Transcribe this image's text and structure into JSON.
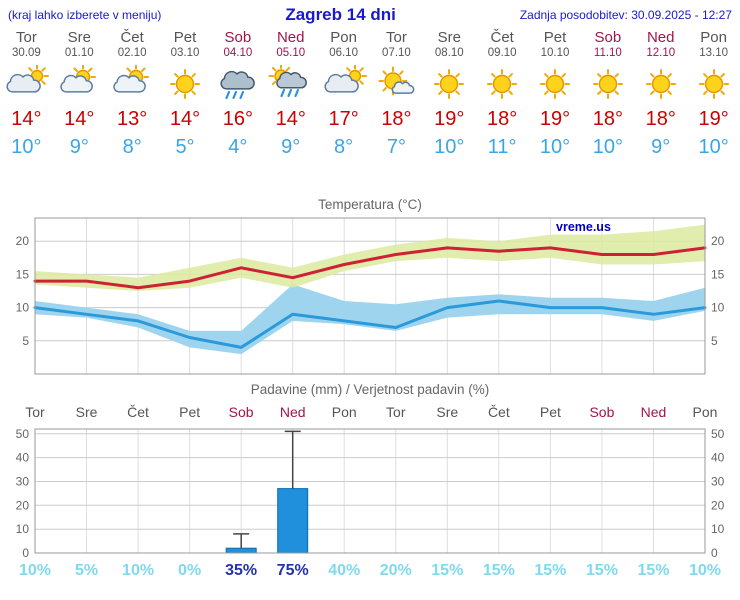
{
  "header": {
    "left_note": "(kraj lahko izberete v meniju)",
    "title": "Zagreb 14 dni",
    "update_note": "Zadnja posodobitev: 30.09.2025 - 12:27"
  },
  "colors": {
    "accent_blue": "#1a1acc",
    "tmax_red": "#cc0000",
    "tmin_blue": "#3aa5e6",
    "weekend_red": "#a0154a",
    "weekday_gray": "#555555",
    "bar_blue": "#2090dd",
    "bar_border": "#0e6bb0",
    "prob_light": "#7fd9ef",
    "prob_dark": "#2433a8",
    "grid": "#cccccc",
    "axis_border": "#999999",
    "band_max_green": "#dcea9e",
    "band_min_blue": "#9fd4ee",
    "line_max_red": "#cc2233",
    "line_min_blue": "#2b9ada"
  },
  "days": [
    {
      "name": "Tor",
      "date": "30.09",
      "icon": "cloudy",
      "tmax": "14°",
      "tmin": "10°",
      "weekend": false
    },
    {
      "name": "Sre",
      "date": "01.10",
      "icon": "partly-cloudy",
      "tmax": "14°",
      "tmin": "9°",
      "weekend": false
    },
    {
      "name": "Čet",
      "date": "02.10",
      "icon": "partly-cloudy",
      "tmax": "13°",
      "tmin": "8°",
      "weekend": false
    },
    {
      "name": "Pet",
      "date": "03.10",
      "icon": "sunny",
      "tmax": "14°",
      "tmin": "5°",
      "weekend": false
    },
    {
      "name": "Sob",
      "date": "04.10",
      "icon": "rain",
      "tmax": "16°",
      "tmin": "4°",
      "weekend": true
    },
    {
      "name": "Ned",
      "date": "05.10",
      "icon": "rain-sun",
      "tmax": "14°",
      "tmin": "9°",
      "weekend": true
    },
    {
      "name": "Pon",
      "date": "06.10",
      "icon": "cloudy",
      "tmax": "17°",
      "tmin": "8°",
      "weekend": false
    },
    {
      "name": "Tor",
      "date": "07.10",
      "icon": "mostly-sunny",
      "tmax": "18°",
      "tmin": "7°",
      "weekend": false
    },
    {
      "name": "Sre",
      "date": "08.10",
      "icon": "sunny",
      "tmax": "19°",
      "tmin": "10°",
      "weekend": false
    },
    {
      "name": "Čet",
      "date": "09.10",
      "icon": "sunny",
      "tmax": "18°",
      "tmin": "11°",
      "weekend": false
    },
    {
      "name": "Pet",
      "date": "10.10",
      "icon": "sunny",
      "tmax": "19°",
      "tmin": "10°",
      "weekend": false
    },
    {
      "name": "Sob",
      "date": "11.10",
      "icon": "sunny",
      "tmax": "18°",
      "tmin": "10°",
      "weekend": true
    },
    {
      "name": "Ned",
      "date": "12.10",
      "icon": "sunny",
      "tmax": "18°",
      "tmin": "9°",
      "weekend": true
    },
    {
      "name": "Pon",
      "date": "13.10",
      "icon": "sunny",
      "tmax": "19°",
      "tmin": "10°",
      "weekend": false
    }
  ],
  "chart_data": [
    {
      "type": "line",
      "title": "Temperatura (°C)",
      "watermark": "vreme.us",
      "ylim": [
        0,
        23.5
      ],
      "yticks": [
        5,
        10,
        15,
        20
      ],
      "x_labels": [
        "Tor",
        "Sre",
        "Čet",
        "Pet",
        "Sob",
        "Ned",
        "Pon",
        "Tor",
        "Sre",
        "Čet",
        "Pet",
        "Sob",
        "Ned",
        "Pon"
      ],
      "series": [
        {
          "name": "max-temperature",
          "color": "#cc2233",
          "values": [
            14,
            14,
            13,
            14,
            16,
            14.5,
            16.5,
            18,
            19,
            18.5,
            19,
            18,
            18,
            19
          ]
        },
        {
          "name": "min-temperature",
          "color": "#2b9ada",
          "values": [
            10,
            9,
            8,
            5.5,
            4,
            9,
            8,
            7,
            10,
            11,
            10,
            10,
            9,
            10
          ]
        }
      ],
      "bands": [
        {
          "name": "min-range",
          "color": "#9fd4ee",
          "opacity": 1,
          "upper": [
            11,
            10,
            9,
            6.5,
            6.5,
            13.5,
            11,
            10.5,
            11.5,
            12,
            11.5,
            11.5,
            11,
            13
          ],
          "lower": [
            9,
            8.5,
            7,
            4,
            3,
            8,
            7.5,
            6.5,
            8.5,
            9,
            9,
            9,
            8,
            9.5
          ]
        },
        {
          "name": "max-range",
          "color": "#dcea9e",
          "opacity": 0.85,
          "upper": [
            15.5,
            15,
            14.5,
            16,
            17.5,
            16,
            18,
            19.5,
            20.5,
            20,
            21,
            21,
            21.5,
            22.5
          ],
          "lower": [
            13.5,
            13,
            12.5,
            13,
            14.5,
            13,
            15.5,
            17,
            17.5,
            17,
            17.5,
            16.5,
            16.5,
            17
          ]
        }
      ]
    },
    {
      "type": "bar",
      "title": "Padavine (mm) / Verjetnost padavin (%)",
      "ylim": [
        0,
        52
      ],
      "yticks": [
        0,
        10,
        20,
        30,
        40,
        50
      ],
      "x_labels": [
        "Tor",
        "Sre",
        "Čet",
        "Pet",
        "Sob",
        "Ned",
        "Pon",
        "Tor",
        "Sre",
        "Čet",
        "Pet",
        "Sob",
        "Ned",
        "Pon"
      ],
      "weekend": [
        false,
        false,
        false,
        false,
        true,
        true,
        false,
        false,
        false,
        false,
        false,
        true,
        true,
        false
      ],
      "bars_mm": [
        0,
        0,
        0,
        0,
        2,
        27,
        0,
        0,
        0,
        0,
        0,
        0,
        0,
        0
      ],
      "whiskers_mm": [
        0,
        0,
        0,
        0,
        8,
        51,
        0,
        0,
        0,
        0,
        0,
        0,
        0,
        0
      ],
      "probabilities": [
        "10%",
        "5%",
        "10%",
        "0%",
        "35%",
        "75%",
        "40%",
        "20%",
        "15%",
        "15%",
        "15%",
        "15%",
        "15%",
        "10%"
      ],
      "prob_emphasis": [
        false,
        false,
        false,
        false,
        true,
        true,
        false,
        false,
        false,
        false,
        false,
        false,
        false,
        false
      ]
    }
  ]
}
